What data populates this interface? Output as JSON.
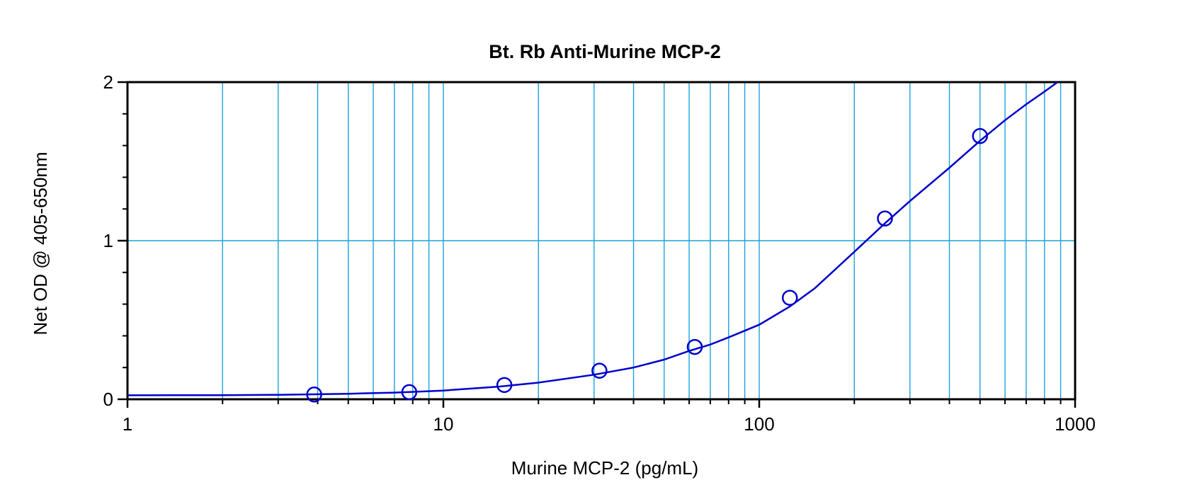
{
  "chart_data": {
    "type": "scatter",
    "title": "Bt. Rb Anti-Murine MCP-2",
    "xlabel": "Murine MCP-2 (pg/mL)",
    "ylabel": "Net OD @ 405-650nm",
    "x_scale": "log",
    "xlim": [
      1,
      1000
    ],
    "ylim": [
      0,
      2
    ],
    "x_ticks": [
      {
        "value": 1,
        "label": "1"
      },
      {
        "value": 10,
        "label": "10"
      },
      {
        "value": 100,
        "label": "100"
      },
      {
        "value": 1000,
        "label": "1000"
      }
    ],
    "y_ticks": [
      {
        "value": 0,
        "label": "0"
      },
      {
        "value": 1,
        "label": "1"
      },
      {
        "value": 2,
        "label": "2"
      }
    ],
    "y_minor_ticks": [
      0.2,
      0.4,
      0.6,
      0.8,
      1.2,
      1.4,
      1.6,
      1.8
    ],
    "grid": true,
    "grid_color": "#1aa3db",
    "series": [
      {
        "color": "#0000cc",
        "points": [
          {
            "x": 3.9,
            "y": 0.03
          },
          {
            "x": 7.8,
            "y": 0.045
          },
          {
            "x": 15.6,
            "y": 0.09
          },
          {
            "x": 31.2,
            "y": 0.18
          },
          {
            "x": 62.5,
            "y": 0.33
          },
          {
            "x": 125,
            "y": 0.64
          },
          {
            "x": 250,
            "y": 1.14
          },
          {
            "x": 500,
            "y": 1.66
          }
        ],
        "fit_curve": [
          {
            "x": 1,
            "y": 0.025
          },
          {
            "x": 2,
            "y": 0.026
          },
          {
            "x": 3,
            "y": 0.028
          },
          {
            "x": 5,
            "y": 0.035
          },
          {
            "x": 7,
            "y": 0.042
          },
          {
            "x": 10,
            "y": 0.055
          },
          {
            "x": 15,
            "y": 0.08
          },
          {
            "x": 20,
            "y": 0.105
          },
          {
            "x": 30,
            "y": 0.155
          },
          {
            "x": 40,
            "y": 0.2
          },
          {
            "x": 50,
            "y": 0.25
          },
          {
            "x": 60,
            "y": 0.305
          },
          {
            "x": 70,
            "y": 0.345
          },
          {
            "x": 80,
            "y": 0.39
          },
          {
            "x": 100,
            "y": 0.47
          },
          {
            "x": 125,
            "y": 0.585
          },
          {
            "x": 150,
            "y": 0.7
          },
          {
            "x": 200,
            "y": 0.93
          },
          {
            "x": 250,
            "y": 1.11
          },
          {
            "x": 300,
            "y": 1.25
          },
          {
            "x": 400,
            "y": 1.46
          },
          {
            "x": 500,
            "y": 1.63
          },
          {
            "x": 600,
            "y": 1.76
          },
          {
            "x": 700,
            "y": 1.86
          },
          {
            "x": 800,
            "y": 1.94
          },
          {
            "x": 880,
            "y": 2.0
          }
        ]
      }
    ]
  }
}
